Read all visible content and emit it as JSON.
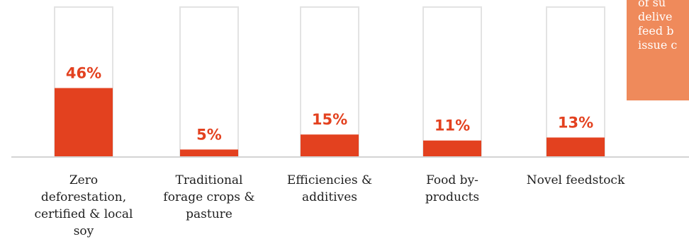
{
  "chart_data": {
    "type": "bar",
    "categories": [
      "Zero deforestation, certified & local soy",
      "Traditional forage crops & pasture",
      "Efficiencies & additives",
      "Food by-products",
      "Novel feedstock"
    ],
    "values": [
      46,
      5,
      15,
      11,
      13
    ],
    "value_labels": [
      "46%",
      "5%",
      "15%",
      "11%",
      "13%"
    ],
    "ylim": [
      0,
      100
    ],
    "colors": {
      "bar": "#e3411f",
      "frame": "#e3e3e3"
    }
  },
  "category_label_lines": [
    [
      "Zero",
      "deforestation,",
      "certified & local",
      "soy"
    ],
    [
      "Traditional",
      "forage crops &",
      "pasture"
    ],
    [
      "Efficiencies &",
      "additives"
    ],
    [
      "Food by-",
      "products"
    ],
    [
      "Novel feedstock"
    ]
  ],
  "callout": {
    "lines": [
      "of su",
      "delive",
      "feed b",
      "issue c"
    ],
    "background": "#ef8a5b"
  }
}
